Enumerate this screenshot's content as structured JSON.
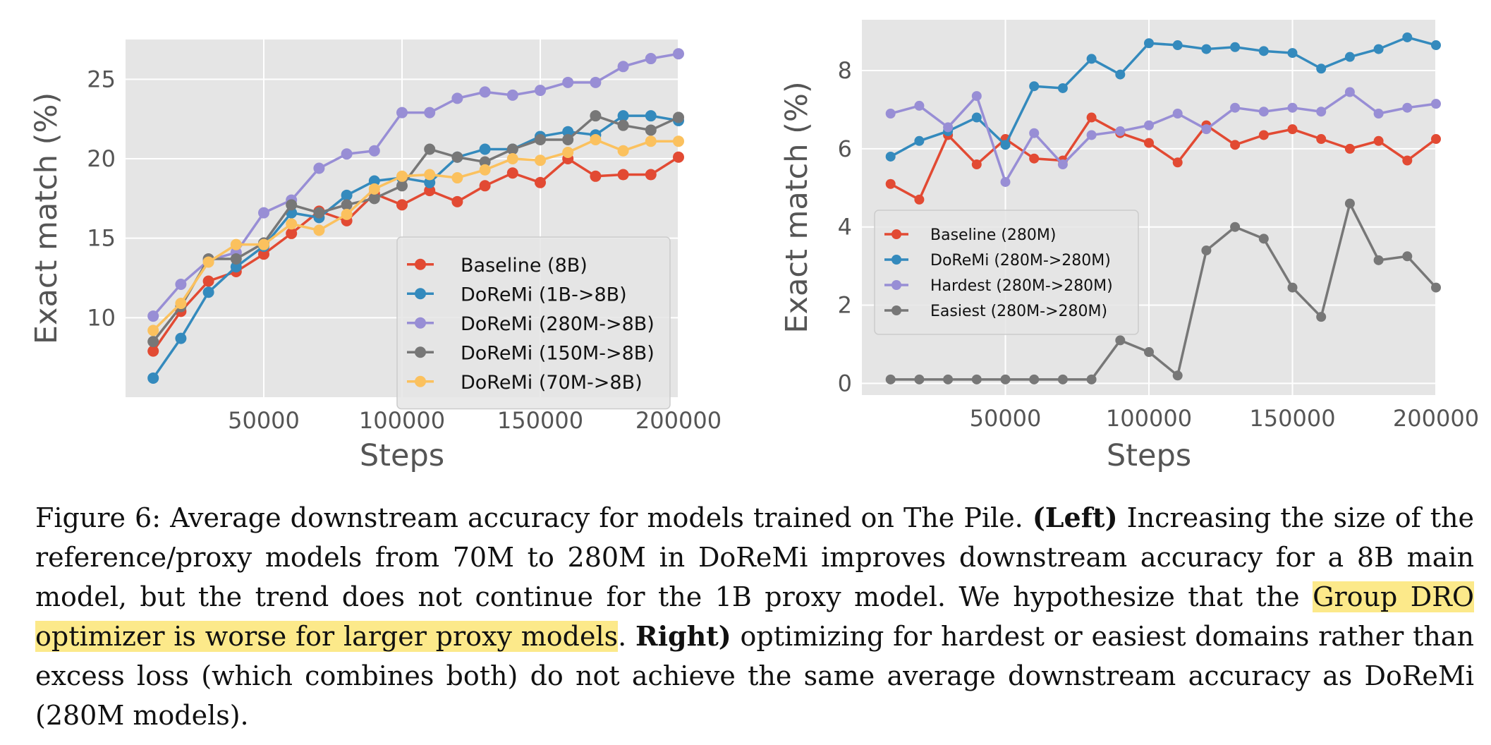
{
  "chart_data": [
    {
      "type": "line",
      "xlabel": "Steps",
      "ylabel": "Exact match (%)",
      "xlim": [
        0,
        200000
      ],
      "ylim": [
        5,
        27.5
      ],
      "xticks": [
        50000,
        100000,
        150000,
        200000
      ],
      "xtick_labels": [
        "50000",
        "100000",
        "150000",
        "200000"
      ],
      "yticks": [
        10,
        15,
        20,
        25
      ],
      "ytick_labels": [
        "10",
        "15",
        "20",
        "25"
      ],
      "grid": true,
      "legend_position": "lower-right",
      "x": [
        10000,
        20000,
        30000,
        40000,
        50000,
        60000,
        70000,
        80000,
        90000,
        100000,
        110000,
        120000,
        130000,
        140000,
        150000,
        160000,
        170000,
        180000,
        190000,
        200000
      ],
      "series": [
        {
          "name": "Baseline (8B)",
          "color": "#E24A33",
          "values": [
            7.9,
            10.4,
            12.3,
            12.9,
            14.0,
            15.3,
            16.7,
            16.1,
            17.8,
            17.1,
            18.0,
            17.3,
            18.3,
            19.1,
            18.5,
            20.0,
            18.9,
            19.0,
            19.0,
            20.1
          ]
        },
        {
          "name": "DoReMi (1B->8B)",
          "color": "#348ABD",
          "values": [
            6.2,
            8.7,
            11.6,
            13.2,
            14.5,
            16.6,
            16.3,
            17.7,
            18.6,
            18.8,
            18.5,
            20.1,
            20.6,
            20.6,
            21.4,
            21.7,
            21.5,
            22.7,
            22.7,
            22.4
          ]
        },
        {
          "name": "DoReMi (280M->8B)",
          "color": "#988ED5",
          "values": [
            10.1,
            12.1,
            13.6,
            14.1,
            16.6,
            17.4,
            19.4,
            20.3,
            20.5,
            22.9,
            22.9,
            23.8,
            24.2,
            24.0,
            24.3,
            24.8,
            24.8,
            25.8,
            26.3,
            26.6
          ]
        },
        {
          "name": "DoReMi (150M->8B)",
          "color": "#777777",
          "values": [
            8.5,
            10.7,
            13.7,
            13.7,
            14.7,
            17.1,
            16.6,
            17.1,
            17.5,
            18.3,
            20.6,
            20.1,
            19.8,
            20.6,
            21.2,
            21.2,
            22.7,
            22.1,
            21.8,
            22.6
          ]
        },
        {
          "name": "DoReMi (70M->8B)",
          "color": "#FBC15E",
          "values": [
            9.2,
            10.9,
            13.5,
            14.6,
            14.6,
            15.9,
            15.5,
            16.5,
            18.1,
            18.9,
            19.0,
            18.8,
            19.3,
            20.0,
            19.9,
            20.4,
            21.2,
            20.5,
            21.1,
            21.1
          ]
        }
      ]
    },
    {
      "type": "line",
      "xlabel": "Steps",
      "ylabel": "Exact match (%)",
      "xlim": [
        0,
        200000
      ],
      "ylim": [
        -0.3,
        9.3
      ],
      "xticks": [
        50000,
        100000,
        150000,
        200000
      ],
      "xtick_labels": [
        "50000",
        "100000",
        "150000",
        "200000"
      ],
      "yticks": [
        0,
        2,
        4,
        6,
        8
      ],
      "ytick_labels": [
        "0",
        "2",
        "4",
        "6",
        "8"
      ],
      "grid": true,
      "legend_position": "center-left",
      "x": [
        10000,
        20000,
        30000,
        40000,
        50000,
        60000,
        70000,
        80000,
        90000,
        100000,
        110000,
        120000,
        130000,
        140000,
        150000,
        160000,
        170000,
        180000,
        190000,
        200000
      ],
      "series": [
        {
          "name": "Baseline (280M)",
          "color": "#E24A33",
          "values": [
            5.1,
            4.7,
            6.35,
            5.6,
            6.25,
            5.75,
            5.7,
            6.8,
            6.4,
            6.15,
            5.65,
            6.6,
            6.1,
            6.35,
            6.5,
            6.25,
            6.0,
            6.2,
            5.7,
            6.25
          ]
        },
        {
          "name": "DoReMi (280M->280M)",
          "color": "#348ABD",
          "values": [
            5.8,
            6.2,
            6.45,
            6.8,
            6.1,
            7.6,
            7.55,
            8.3,
            7.9,
            8.7,
            8.65,
            8.55,
            8.6,
            8.5,
            8.45,
            8.05,
            8.35,
            8.55,
            8.85,
            8.65
          ]
        },
        {
          "name": "Hardest (280M->280M)",
          "color": "#988ED5",
          "values": [
            6.9,
            7.1,
            6.55,
            7.35,
            5.15,
            6.4,
            5.6,
            6.35,
            6.45,
            6.6,
            6.9,
            6.5,
            7.05,
            6.95,
            7.05,
            6.95,
            7.45,
            6.9,
            7.05,
            7.15
          ]
        },
        {
          "name": "Easiest (280M->280M)",
          "color": "#777777",
          "values": [
            0.1,
            0.1,
            0.1,
            0.1,
            0.1,
            0.1,
            0.1,
            0.1,
            1.1,
            0.8,
            0.2,
            3.4,
            4.0,
            3.7,
            2.45,
            1.7,
            4.6,
            3.15,
            3.25,
            2.45
          ]
        }
      ]
    }
  ],
  "caption": {
    "part1": "Figure 6: Average downstream accuracy for models trained on The Pile. ",
    "bold1": "(Left)",
    "part2": " Increasing the size of the reference/proxy models from 70M to 280M in DoReMi improves downstream accuracy for a 8B main model, but the trend does not continue for the 1B proxy model. We hypothesize that the ",
    "highlight": "Group DRO optimizer is worse for larger proxy models",
    "part3": ". ",
    "bold2": "Right)",
    "part4": " optimizing for hardest or easiest domains rather than excess loss (which combines both) do not achieve the same average downstream accuracy as DoReMi (280M models)."
  },
  "style": {
    "plot_background": "#E5E5E5",
    "grid_color": "#FFFFFF",
    "highlight_color": "#FCE98A"
  }
}
